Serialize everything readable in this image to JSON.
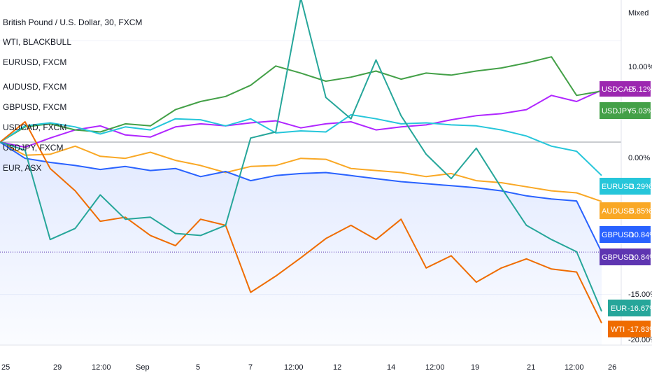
{
  "legend": [
    "British Pound / U.S. Dollar, 30, FXCM",
    "WTI, BLACKBULL",
    "EURUSD, FXCM",
    "AUDUSD, FXCM",
    "GBPUSD, FXCM",
    "USDCAD, FXCM",
    "USDJPY, FXCM",
    "EUR, ASX"
  ],
  "scale_mode": "Mixed",
  "x_ticks": [
    "25",
    "29",
    "12:00",
    "Sep",
    "5",
    "7",
    "12:00",
    "12",
    "14",
    "12:00",
    "19",
    "21",
    "12:00",
    "26"
  ],
  "y_ticks": [
    "10.00%",
    "0.00%",
    "-15.00%",
    "-20.00%"
  ],
  "tags": [
    {
      "symbol": "USDCAD",
      "value": "+5.12%",
      "color": "#9c27b0"
    },
    {
      "symbol": "USDJPY",
      "value": "+5.03%",
      "color": "#43a047"
    },
    {
      "symbol": "EURUSD",
      "value": "-3.29%",
      "color": "#26c6da"
    },
    {
      "symbol": "AUDUSD",
      "value": "-5.85%",
      "color": "#f9a825"
    },
    {
      "symbol": "GBPUSD",
      "value": "-10.84%",
      "color": "#2962ff"
    },
    {
      "symbol": "GBPUSD",
      "value": "-10.84%",
      "color": "#5e35b1"
    },
    {
      "symbol": "EUR",
      "value": "-16.67%",
      "color": "#26a69a"
    },
    {
      "symbol": "WTI",
      "value": "-17.83%",
      "color": "#ef6c00"
    }
  ],
  "chart_data": {
    "type": "line",
    "y_unit": "% change",
    "ylim": [
      -20,
      14
    ],
    "x": [
      0,
      1,
      2,
      3,
      4,
      5,
      6,
      7,
      8,
      9,
      10,
      11,
      12,
      13,
      14,
      15,
      16,
      17,
      18,
      19,
      20,
      21,
      22,
      23,
      24
    ],
    "series": [
      {
        "name": "USDCAD, FXCM",
        "color": "#b026ff",
        "values": [
          0,
          -0.5,
          0.4,
          1.2,
          1.6,
          0.7,
          0.5,
          1.5,
          1.8,
          1.6,
          1.9,
          2.1,
          1.4,
          1.8,
          2.0,
          1.2,
          1.5,
          1.7,
          2.2,
          2.6,
          2.8,
          3.2,
          4.6,
          4.0,
          5.12
        ]
      },
      {
        "name": "USDJPY, FXCM",
        "color": "#43a047",
        "values": [
          0,
          1.5,
          1.8,
          1.2,
          1.0,
          1.8,
          1.6,
          3.2,
          4.0,
          4.5,
          5.6,
          7.5,
          6.8,
          6.0,
          6.4,
          7.0,
          6.2,
          6.8,
          6.6,
          7.0,
          7.3,
          7.8,
          8.4,
          4.6,
          5.03
        ]
      },
      {
        "name": "EURUSD, FXCM",
        "color": "#26c6da",
        "values": [
          0,
          1.6,
          1.9,
          1.5,
          0.8,
          1.5,
          1.2,
          2.3,
          2.2,
          1.6,
          2.3,
          0.9,
          1.1,
          1.0,
          2.7,
          2.3,
          1.8,
          1.9,
          1.7,
          1.6,
          1.2,
          0.6,
          -0.4,
          -0.9,
          -3.29
        ]
      },
      {
        "name": "AUDUSD, FXCM",
        "color": "#f9a825",
        "values": [
          0,
          -1.3,
          -1.2,
          -0.4,
          -1.4,
          -1.6,
          -1.0,
          -1.8,
          -2.3,
          -3.0,
          -2.4,
          -2.3,
          -1.6,
          -1.7,
          -2.6,
          -2.8,
          -3.0,
          -3.4,
          -3.1,
          -3.8,
          -4.0,
          -4.4,
          -4.8,
          -5.0,
          -5.85
        ]
      },
      {
        "name": "GBPUSD, FXCM",
        "color": "#2962ff",
        "values": [
          0,
          -1.6,
          -2.0,
          -2.3,
          -2.7,
          -2.4,
          -2.8,
          -2.6,
          -3.4,
          -2.9,
          -3.8,
          -3.3,
          -3.1,
          -3.0,
          -3.3,
          -3.6,
          -3.9,
          -4.1,
          -4.3,
          -4.5,
          -4.8,
          -5.3,
          -5.6,
          -5.8,
          -10.84
        ]
      },
      {
        "name": "WTI, BLACKBULL",
        "color": "#ef6c00",
        "values": [
          0,
          2.0,
          -2.6,
          -4.8,
          -7.8,
          -7.4,
          -9.2,
          -10.2,
          -7.6,
          -8.2,
          -14.8,
          -13.2,
          -11.4,
          -9.5,
          -8.2,
          -9.6,
          -7.6,
          -12.4,
          -11.2,
          -13.8,
          -12.4,
          -11.5,
          -12.5,
          -12.8,
          -17.83
        ]
      },
      {
        "name": "EUR, ASX",
        "color": "#26a69a",
        "values": [
          0,
          -0.8,
          -9.6,
          -8.5,
          -5.2,
          -7.6,
          -7.4,
          -9.0,
          -9.2,
          -8.2,
          0.4,
          1.0,
          14.2,
          4.4,
          2.3,
          8.1,
          2.6,
          -1.2,
          -3.6,
          -0.6,
          -4.5,
          -8.2,
          -9.6,
          -10.8,
          -16.67
        ]
      }
    ]
  }
}
